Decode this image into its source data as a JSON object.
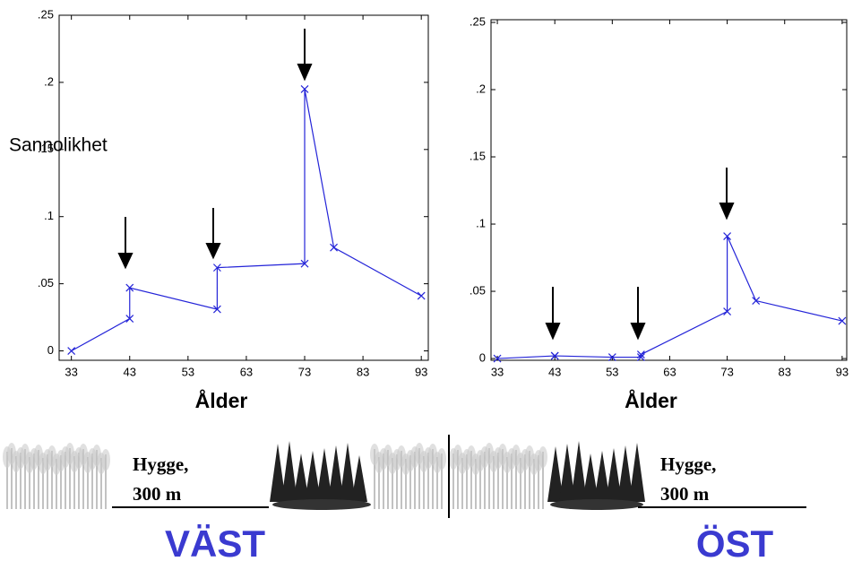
{
  "chart_data": [
    {
      "type": "line",
      "x_label": "Ålder",
      "y_label": "Sannolikhet",
      "x": [
        33,
        43,
        43,
        58,
        58,
        73,
        73,
        78,
        93
      ],
      "series": [
        {
          "color": "#2424d8",
          "values": [
            0,
            0.024,
            0.047,
            0.031,
            0.062,
            0.065,
            0.195,
            0.077,
            0.041
          ]
        }
      ],
      "xlim": [
        30.9,
        94.2
      ],
      "ylim": [
        -0.007,
        0.25
      ],
      "xticks": [
        33,
        43,
        53,
        63,
        73,
        83,
        93
      ],
      "yticks": [
        0,
        {
          "value": 0.05,
          "label": ".05"
        },
        {
          "value": 0.1,
          "label": ".1"
        },
        {
          "value": 0.15,
          "label": ".15"
        },
        {
          "value": 0.2,
          "label": ".2"
        },
        {
          "value": 0.25,
          "label": ".25"
        }
      ]
    },
    {
      "type": "line",
      "x_label": "Ålder",
      "x": [
        33,
        43,
        43,
        53,
        58,
        58,
        73,
        73,
        78,
        93
      ],
      "series": [
        {
          "color": "#2424d8",
          "values": [
            0,
            0.002,
            0.002,
            0.001,
            0.001,
            0.003,
            0.035,
            0.091,
            0.043,
            0.028
          ]
        }
      ],
      "xlim": [
        31.9,
        93.8
      ],
      "ylim": [
        -0.0013,
        0.252
      ],
      "xticks": [
        33,
        43,
        53,
        63,
        73,
        83,
        93
      ],
      "yticks": [
        0,
        {
          "value": 0.05,
          "label": ".05"
        },
        {
          "value": 0.1,
          "label": ".1"
        },
        {
          "value": 0.15,
          "label": ".15"
        },
        {
          "value": 0.2,
          "label": ".2"
        },
        {
          "value": 0.25,
          "label": ".25"
        }
      ]
    }
  ],
  "footer": {
    "left": {
      "line1": "Hygge,",
      "line2": "300 m",
      "region": "VÄST"
    },
    "right": {
      "line1": "Hygge,",
      "line2": "300 m",
      "region": "ÖST"
    }
  }
}
